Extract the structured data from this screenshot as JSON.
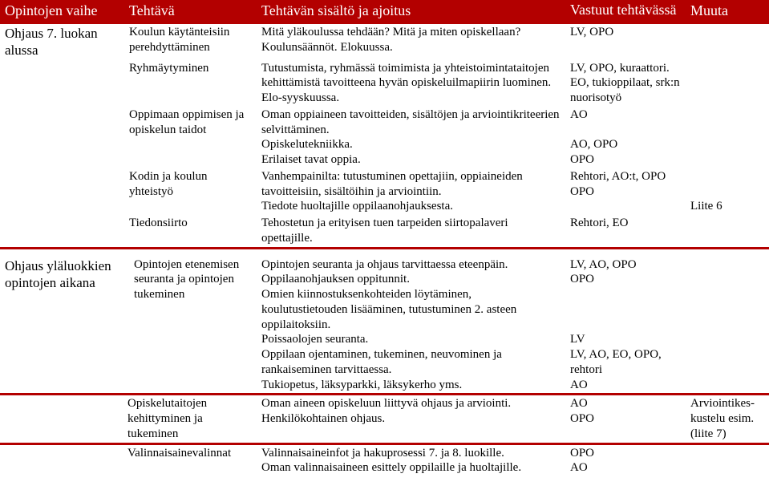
{
  "colors": {
    "header_bg": "#b30000",
    "header_text": "#ffffff",
    "text": "#000000",
    "bg": "#ffffff"
  },
  "typography": {
    "font_family": "Times New Roman",
    "header_fontsize": 18,
    "body_fontsize": 15
  },
  "headers": {
    "col1": "Opintojen vaihe",
    "col2": "Tehtävä",
    "col3": "Tehtävän sisältö ja ajoitus",
    "col4": "Vastuut tehtävässä",
    "col5": "Muuta"
  },
  "rows": [
    {
      "phase": "Ohjaus 7. luokan alussa",
      "task": "Koulun käytänteisiin perehdyttäminen",
      "content": "Mitä yläkoulussa tehdään? Mitä ja miten opiskellaan? Koulunsäännöt. Elokuussa.",
      "resp": "LV, OPO",
      "other": ""
    },
    {
      "phase": "",
      "task": "Ryhmäytyminen",
      "content": "Tutustumista, ryhmässä toimimista ja yhteistoimintataitojen kehittämistä tavoitteena hyvän opiskeluilmapiirin luominen. Elo-syyskuussa.",
      "resp": "LV, OPO, kuraattori. EO, tukioppilaat, srk:n nuorisotyö",
      "other": ""
    },
    {
      "phase": "",
      "task": "Oppimaan oppimisen ja opiskelun taidot",
      "content": "Oman oppiaineen tavoitteiden, sisältöjen ja arviointikriteerien selvittäminen.\nOpiskelutekniikka.\nErilaiset tavat oppia.",
      "resp": "AO\n\nAO, OPO\nOPO",
      "other": ""
    },
    {
      "phase": "",
      "task": "Kodin ja koulun yhteistyö",
      "content": "Vanhempainilta: tutustuminen opettajiin, oppiaineiden tavoitteisiin, sisältöihin ja arviointiin.\nTiedote huoltajille oppilaanohjauksesta.",
      "resp": "Rehtori, AO:t, OPO\nOPO",
      "other": "\n\nLiite 6"
    },
    {
      "phase": "",
      "task": "Tiedonsiirto",
      "content": "Tehostetun ja erityisen tuen tarpeiden siirtopalaveri opettajille.",
      "resp": "Rehtori, EO",
      "other": ""
    },
    {
      "phase": "Ohjaus yläluokkien opintojen aikana",
      "task": "Opintojen etenemisen seuranta ja opintojen tukeminen",
      "content": "Opintojen seuranta ja ohjaus tarvittaessa eteenpäin.\nOppilaanohjauksen oppitunnit.\nOmien kiinnostuksenkohteiden löytäminen, koulutustietouden lisääminen, tutustuminen 2. asteen oppilaitoksiin.\nPoissaolojen seuranta.\nOppilaan ojentaminen, tukeminen, neuvominen ja rankaiseminen tarvittaessa.\nTukiopetus, läksyparkki, läksykerho yms.",
      "resp": "LV, AO, OPO\nOPO\n\n\n\nLV\nLV, AO, EO, OPO, rehtori\nAO",
      "other": ""
    },
    {
      "phase": "",
      "task": "Opiskelutaitojen kehittyminen ja tukeminen",
      "content": "Oman aineen opiskeluun liittyvä ohjaus ja arviointi.\nHenkilökohtainen ohjaus.",
      "resp": "AO\nOPO",
      "other": "Arviointikes-kustelu esim. (liite 7)"
    },
    {
      "phase": "",
      "task": "Valinnaisainevalinnat",
      "content": "Valinnaisaineinfot ja hakuprosessi 7. ja 8. luokille.\nOman valinnaisaineen esittely oppilaille ja huoltajille.",
      "resp": "OPO\nAO",
      "other": ""
    }
  ]
}
